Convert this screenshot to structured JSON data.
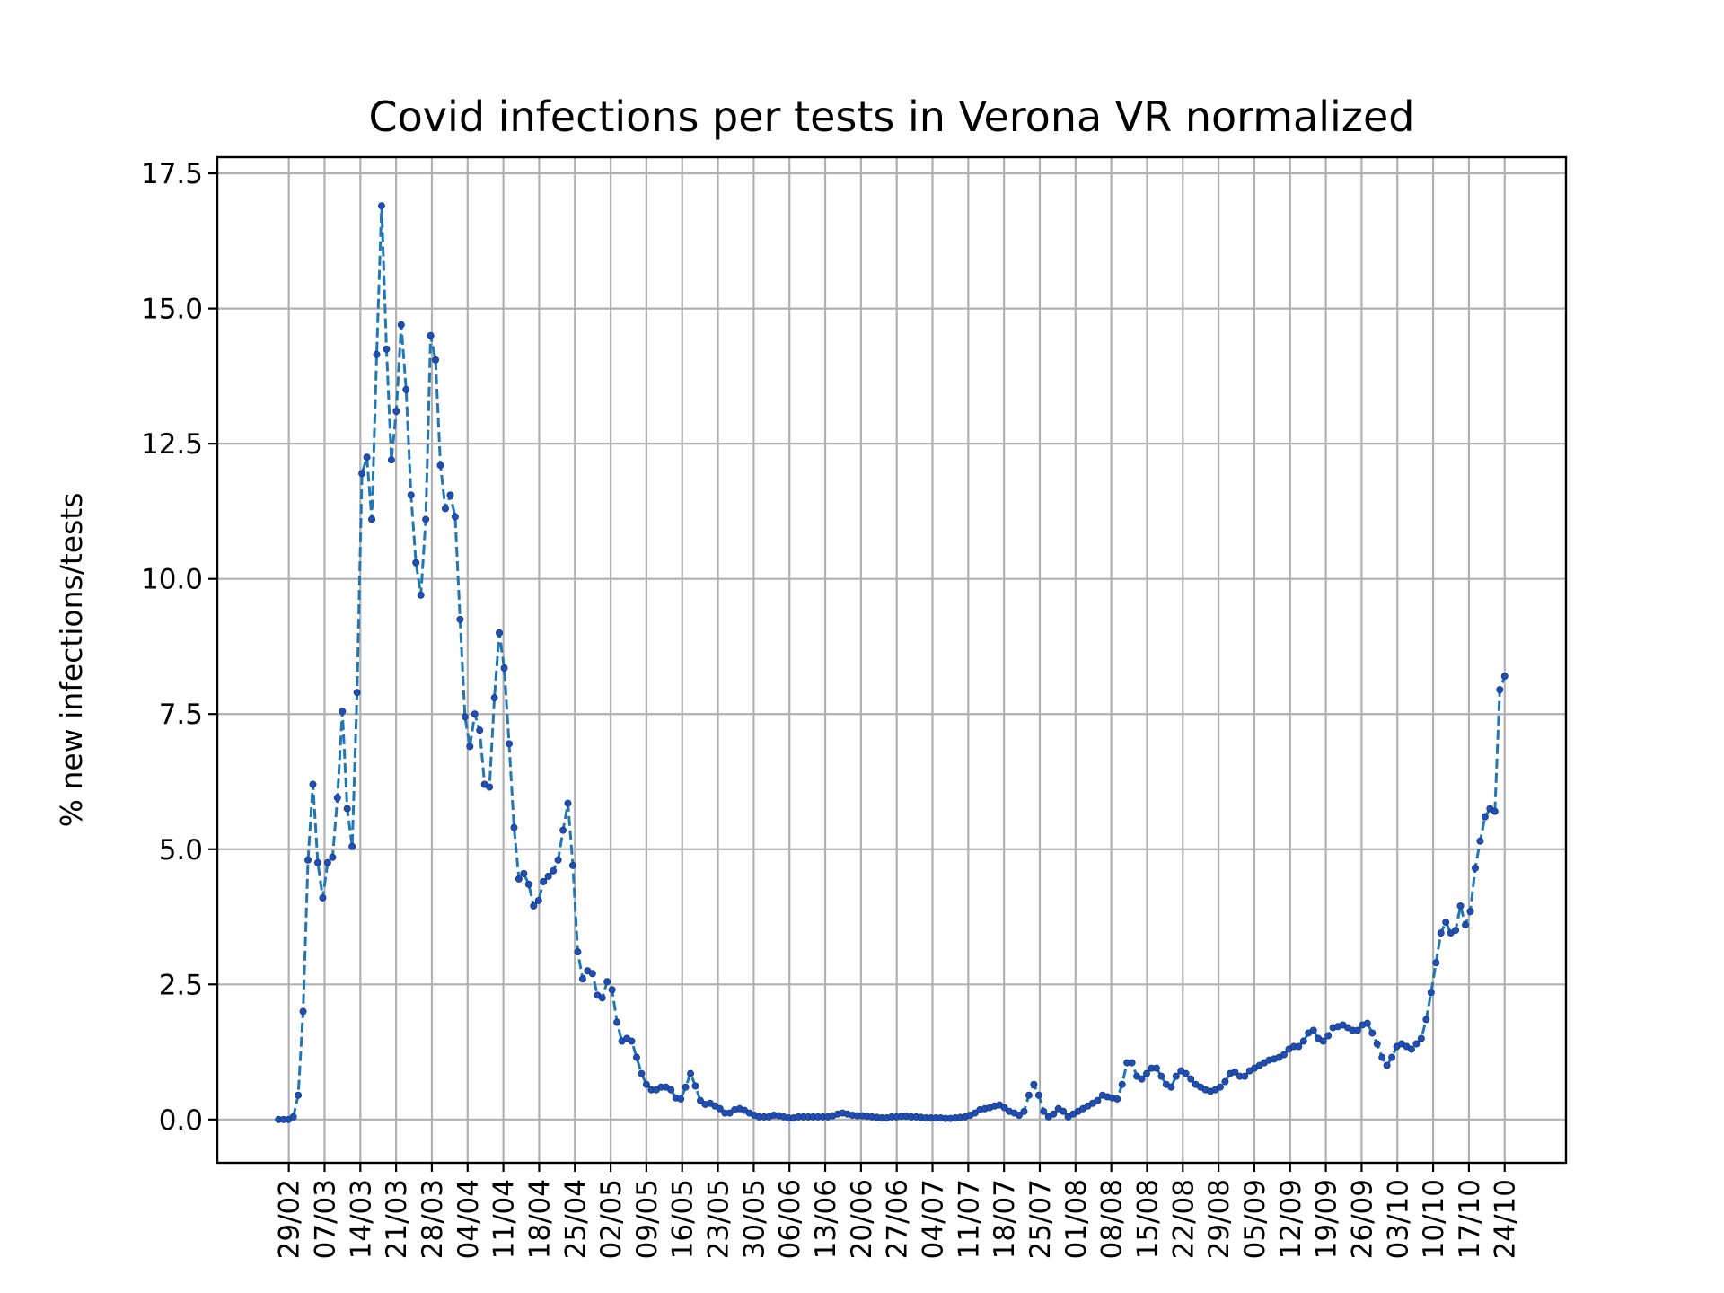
{
  "chart_data": {
    "type": "line",
    "title": "Covid infections per tests in Verona VR normalized",
    "xlabel": "",
    "ylabel": "% new infections/tests",
    "ylim": [
      -0.8,
      17.8
    ],
    "yticks": [
      "0.0",
      "2.5",
      "5.0",
      "7.5",
      "10.0",
      "12.5",
      "15.0",
      "17.5"
    ],
    "x_start_date": "2020-02-27",
    "x_end_date": "2020-10-24",
    "xtick_labels": [
      "29/02",
      "07/03",
      "14/03",
      "21/03",
      "28/03",
      "04/04",
      "11/04",
      "18/04",
      "25/04",
      "02/05",
      "09/05",
      "16/05",
      "23/05",
      "30/05",
      "06/06",
      "13/06",
      "20/06",
      "27/06",
      "04/07",
      "11/07",
      "18/07",
      "25/07",
      "01/08",
      "08/08",
      "15/08",
      "22/08",
      "29/08",
      "05/09",
      "12/09",
      "19/09",
      "26/09",
      "03/10",
      "10/10",
      "17/10",
      "24/10"
    ],
    "grid": true,
    "series": [
      {
        "name": "",
        "color": "#1f77b4",
        "marker_color": "#1f4fb4",
        "line_style": "dashed",
        "values": [
          0.0,
          0.0,
          0.0,
          0.05,
          0.45,
          2.0,
          4.8,
          6.2,
          4.75,
          4.1,
          4.75,
          4.85,
          5.95,
          7.55,
          5.75,
          5.05,
          7.9,
          11.95,
          12.25,
          11.1,
          14.15,
          16.9,
          14.25,
          12.2,
          13.1,
          14.7,
          13.5,
          11.55,
          10.3,
          9.7,
          11.1,
          14.5,
          14.05,
          12.1,
          11.3,
          11.55,
          11.15,
          9.25,
          7.45,
          6.9,
          7.5,
          7.2,
          6.2,
          6.15,
          7.8,
          9.0,
          8.35,
          6.95,
          5.4,
          4.45,
          4.55,
          4.35,
          3.95,
          4.05,
          4.4,
          4.5,
          4.6,
          4.8,
          5.35,
          5.85,
          4.7,
          3.1,
          2.6,
          2.75,
          2.7,
          2.3,
          2.25,
          2.55,
          2.4,
          1.8,
          1.45,
          1.5,
          1.45,
          1.15,
          0.85,
          0.65,
          0.55,
          0.55,
          0.6,
          0.6,
          0.55,
          0.4,
          0.38,
          0.6,
          0.85,
          0.62,
          0.35,
          0.28,
          0.3,
          0.25,
          0.2,
          0.12,
          0.12,
          0.18,
          0.2,
          0.17,
          0.12,
          0.08,
          0.05,
          0.05,
          0.05,
          0.08,
          0.07,
          0.05,
          0.03,
          0.03,
          0.05,
          0.05,
          0.05,
          0.05,
          0.05,
          0.05,
          0.05,
          0.07,
          0.1,
          0.12,
          0.1,
          0.08,
          0.07,
          0.07,
          0.06,
          0.05,
          0.04,
          0.03,
          0.03,
          0.05,
          0.05,
          0.06,
          0.06,
          0.05,
          0.05,
          0.04,
          0.03,
          0.03,
          0.03,
          0.03,
          0.02,
          0.02,
          0.03,
          0.04,
          0.05,
          0.08,
          0.12,
          0.18,
          0.2,
          0.22,
          0.25,
          0.27,
          0.22,
          0.15,
          0.12,
          0.08,
          0.15,
          0.45,
          0.65,
          0.45,
          0.15,
          0.05,
          0.1,
          0.2,
          0.15,
          0.05,
          0.1,
          0.15,
          0.2,
          0.25,
          0.3,
          0.35,
          0.45,
          0.42,
          0.4,
          0.38,
          0.65,
          1.05,
          1.05,
          0.8,
          0.75,
          0.85,
          0.95,
          0.95,
          0.8,
          0.65,
          0.6,
          0.8,
          0.9,
          0.85,
          0.75,
          0.65,
          0.6,
          0.55,
          0.52,
          0.55,
          0.6,
          0.7,
          0.85,
          0.88,
          0.8,
          0.8,
          0.9,
          0.95,
          1.0,
          1.05,
          1.1,
          1.12,
          1.15,
          1.2,
          1.3,
          1.35,
          1.35,
          1.45,
          1.6,
          1.65,
          1.5,
          1.45,
          1.55,
          1.7,
          1.72,
          1.75,
          1.7,
          1.65,
          1.65,
          1.75,
          1.78,
          1.6,
          1.4,
          1.15,
          1.0,
          1.15,
          1.35,
          1.4,
          1.35,
          1.3,
          1.4,
          1.5,
          1.85,
          2.35,
          2.9,
          3.45,
          3.65,
          3.45,
          3.5,
          3.95,
          3.6,
          3.85,
          4.65,
          5.15,
          5.6,
          5.75,
          5.7,
          7.95,
          8.2
        ]
      }
    ]
  }
}
